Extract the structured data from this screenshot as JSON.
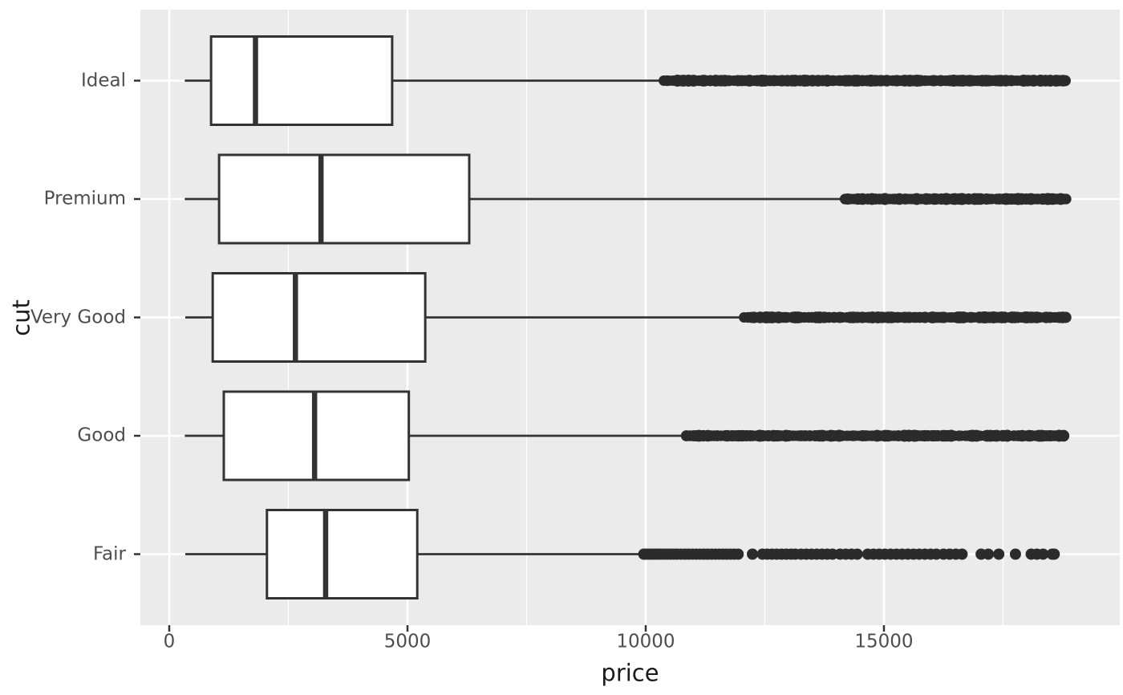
{
  "chart_data": {
    "type": "boxplot",
    "orientation": "horizontal",
    "title": "",
    "xlabel": "price",
    "ylabel": "cut",
    "x_axis": {
      "tick_labels": [
        "0",
        "5000",
        "10000",
        "15000"
      ],
      "tick_values": [
        0,
        5000,
        10000,
        15000
      ],
      "minor_tick_values": [
        2500,
        7500,
        12500,
        17500
      ],
      "range": [
        -606,
        19950
      ],
      "grid": true
    },
    "y_axis": {
      "categories_top_to_bottom": [
        "Ideal",
        "Premium",
        "Very Good",
        "Good",
        "Fair"
      ]
    },
    "series": [
      {
        "label": "Ideal",
        "whisker_low": 326,
        "q1": 878,
        "median": 1810,
        "q3": 4678.5,
        "whisker_high": 10377,
        "outliers": {
          "dense_segments": [
            [
              10380,
              18806
            ]
          ]
        }
      },
      {
        "label": "Premium",
        "whisker_low": 326,
        "q1": 1046,
        "median": 3185,
        "q3": 6296,
        "whisker_high": 14167,
        "outliers": {
          "dense_segments": [
            [
              14171,
              18823
            ]
          ]
        }
      },
      {
        "label": "Very Good",
        "whisker_low": 336,
        "q1": 912,
        "median": 2648,
        "q3": 5372.75,
        "whisker_high": 12060,
        "outliers": {
          "dense_segments": [
            [
              12064,
              18818
            ]
          ]
        }
      },
      {
        "label": "Good",
        "whisker_low": 327,
        "q1": 1145,
        "median": 3050.5,
        "q3": 5028,
        "whisker_high": 10851,
        "outliers": {
          "dense_segments": [
            [
              10853,
              17020
            ],
            [
              17120,
              18180
            ],
            [
              18230,
              18788
            ]
          ]
        }
      },
      {
        "label": "Fair",
        "whisker_low": 337,
        "q1": 2050.25,
        "median": 3282,
        "q3": 5205.5,
        "whisker_high": 9934,
        "outliers": {
          "values": [
            9960,
            10010,
            10070,
            10130,
            10190,
            10250,
            10310,
            10380,
            10450,
            10520,
            10590,
            10660,
            10740,
            10820,
            10900,
            10980,
            11060,
            11140,
            11220,
            11300,
            11380,
            11460,
            11540,
            11620,
            11700,
            11780,
            11860,
            11940,
            12240,
            12450,
            12550,
            12650,
            12750,
            12850,
            12950,
            13050,
            13140,
            13260,
            13370,
            13480,
            13590,
            13700,
            13810,
            13920,
            14080,
            14200,
            14320,
            14440,
            14660,
            14780,
            14900,
            15020,
            15140,
            15260,
            15380,
            15500,
            15620,
            15740,
            15860,
            15980,
            16100,
            16250,
            16380,
            16510,
            16640,
            17040,
            17190,
            17410,
            17760,
            18090,
            18210,
            18340,
            18530,
            18574
          ]
        }
      }
    ],
    "style": {
      "panel_background": "#ebebeb",
      "grid_color": "#ffffff",
      "box_fill": "#ffffff",
      "box_stroke": "#333333",
      "outlier_color": "#2b2b2b",
      "tick_mark_color": "#333333",
      "tick_label_color": "#4d4d4d",
      "axis_title_color": "#1a1a1a"
    }
  }
}
